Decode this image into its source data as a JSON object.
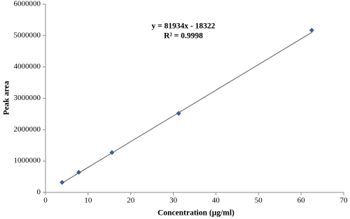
{
  "chart_data": {
    "type": "scatter",
    "x_label": "Concentration (µg/ml)",
    "y_label": "Peak area",
    "annotations": [
      "y = 81934x - 18322",
      "R² = 0.9998"
    ],
    "series": [
      {
        "color": "#3b5e96",
        "x": [
          3.9,
          7.8,
          15.6,
          31.25,
          62.5
        ],
        "values": [
          320000,
          640000,
          1270000,
          2520000,
          5170000
        ]
      }
    ],
    "trendline": {
      "color": "#555555",
      "x": [
        3.9,
        62.5
      ],
      "values": [
        300000,
        5100000
      ]
    },
    "xlim": [
      0,
      70
    ],
    "xticks": [
      0,
      10,
      20,
      30,
      40,
      50,
      60,
      70
    ],
    "ylim": [
      0,
      6000000
    ],
    "yticks": [
      0,
      1000000,
      2000000,
      3000000,
      4000000,
      5000000,
      6000000
    ],
    "grid": false
  }
}
